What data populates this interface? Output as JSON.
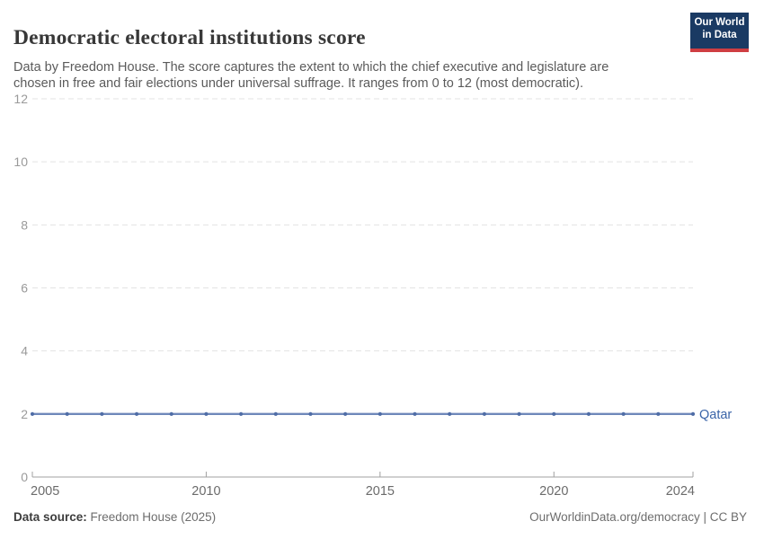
{
  "header": {
    "title": "Democratic electoral institutions score",
    "subtitle": "Data by Freedom House. The score captures the extent to which the chief executive and legislature are chosen in free and fair elections under universal suffrage. It ranges from 0 to 12 (most democratic).",
    "logo": {
      "line1": "Our World",
      "line2": "in Data",
      "bg_color": "#1a3a63",
      "bar_color": "#cf3e42"
    }
  },
  "chart_data": {
    "type": "line",
    "title": "Democratic electoral institutions score",
    "xlabel": "",
    "ylabel": "",
    "xlim": [
      2005,
      2024
    ],
    "ylim": [
      0,
      12
    ],
    "x_ticks": [
      2005,
      2010,
      2015,
      2020,
      2024
    ],
    "y_ticks": [
      0,
      2,
      4,
      6,
      8,
      10,
      12
    ],
    "grid": "horizontal-dashed",
    "legend_position": "end-of-line",
    "x": [
      2005,
      2006,
      2007,
      2008,
      2009,
      2010,
      2011,
      2012,
      2013,
      2014,
      2015,
      2016,
      2017,
      2018,
      2019,
      2020,
      2021,
      2022,
      2023,
      2024
    ],
    "series": [
      {
        "name": "Qatar",
        "values": [
          2,
          2,
          2,
          2,
          2,
          2,
          2,
          2,
          2,
          2,
          2,
          2,
          2,
          2,
          2,
          2,
          2,
          2,
          2,
          2
        ],
        "line_color": "#6f88ba",
        "point_color": "#4f6da6",
        "label_color": "#3a64a8"
      }
    ],
    "style": {
      "grid_color": "#e3e3e3",
      "axis_color": "#a0a0a0",
      "tick_label_color": "#9a9a9a",
      "x_label_color": "#6b6b6b"
    }
  },
  "footer": {
    "source_label": "Data source:",
    "source_value": " Freedom House (2025)",
    "link": "OurWorldinData.org/democracy | CC BY"
  }
}
